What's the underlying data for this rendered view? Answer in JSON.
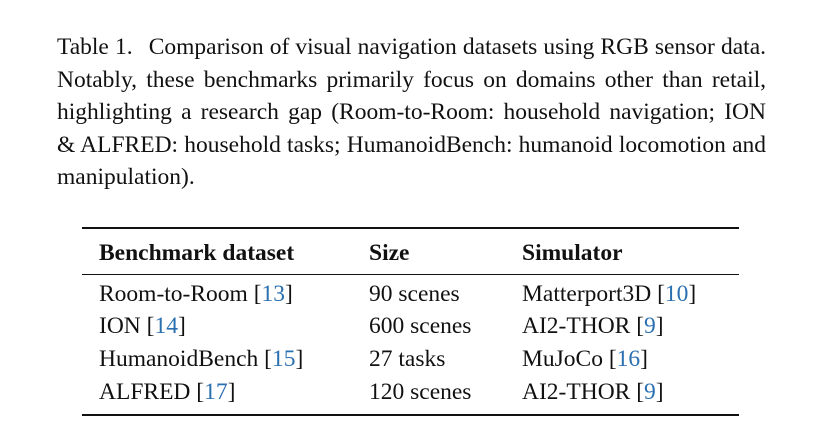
{
  "caption": {
    "label": "Table 1.",
    "text": "Comparison of visual navigation datasets using RGB sensor data. Notably, these benchmarks primarily focus on domains other than retail, highlighting a research gap (Room-to-Room: household navigation; ION & ALFRED: household tasks; HumanoidBench: humanoid locomotion and manipulation)."
  },
  "table": {
    "headers": [
      "Benchmark dataset",
      "Size",
      "Simulator"
    ],
    "rows": [
      {
        "name": "Room-to-Room",
        "name_ref": "13",
        "size": "90 scenes",
        "simulator": "Matterport3D",
        "sim_ref": "10"
      },
      {
        "name": "ION",
        "name_ref": "14",
        "size": "600 scenes",
        "simulator": "AI2-THOR",
        "sim_ref": "9"
      },
      {
        "name": "HumanoidBench",
        "name_ref": "15",
        "size": "27 tasks",
        "simulator": "MuJoCo",
        "sim_ref": "16"
      },
      {
        "name": "ALFRED",
        "name_ref": "17",
        "size": "120 scenes",
        "simulator": "AI2-THOR",
        "sim_ref": "9"
      }
    ]
  },
  "colors": {
    "text": "#111111",
    "citation_link": "#2a6fb0"
  }
}
